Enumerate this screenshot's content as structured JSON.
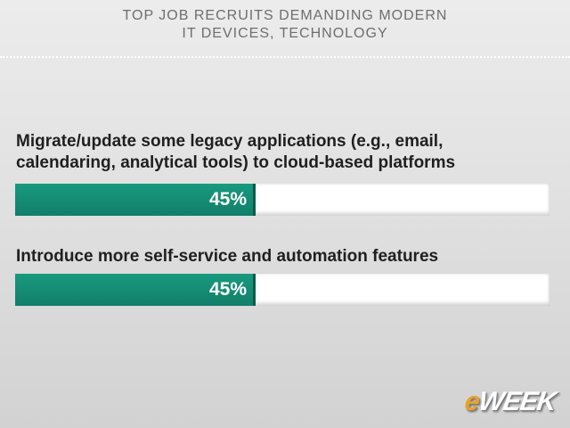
{
  "chart_data": {
    "type": "bar",
    "orientation": "horizontal",
    "title": [
      "TOP JOB RECRUITS DEMANDING MODERN",
      "IT DEVICES, TECHNOLOGY"
    ],
    "categories": [
      [
        "Migrate/update some legacy applications (e.g., email,",
        "calendaring, analytical tools) to cloud-based platforms"
      ],
      [
        "Introduce more self-service and automation features"
      ]
    ],
    "values": [
      45,
      45
    ],
    "value_labels": [
      "45%",
      "45%"
    ],
    "unit": "%",
    "xlim": [
      0,
      100
    ],
    "grid": false,
    "legend": "none",
    "colors": {
      "bar": "#15907a",
      "track": "#ffffff",
      "title": "#6e6e6e",
      "label": "#1f1f1f"
    }
  },
  "branding": {
    "logo_accent": "e",
    "logo_rest": "WEEK",
    "accent_color": "#e8a12a"
  }
}
